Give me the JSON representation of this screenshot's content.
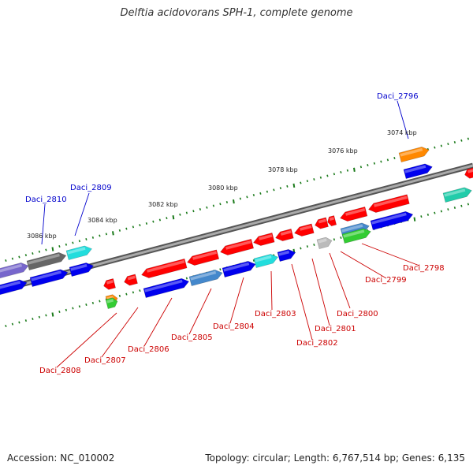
{
  "title": "Delftia acidovorans SPH-1, complete genome",
  "footer": {
    "accession": "Accession: NC_010002",
    "topology": "Topology: circular; Length: 6,767,514 bp; Genes: 6,135"
  },
  "kbp_ticks": [
    "3074 kbp",
    "3076 kbp",
    "3078 kbp",
    "3080 kbp",
    "3082 kbp",
    "3084 kbp",
    "3086 kbp"
  ],
  "gene_labels": {
    "top": [
      "Daci_2796",
      "Daci_2809",
      "Daci_2810"
    ],
    "bottom": [
      "Daci_2798",
      "Daci_2799",
      "Daci_2800",
      "Daci_2801",
      "Daci_2802",
      "Daci_2803",
      "Daci_2804",
      "Daci_2805",
      "Daci_2806",
      "Daci_2807",
      "Daci_2808"
    ]
  },
  "colors": {
    "label_top": "#0000cc",
    "label_bottom": "#cc0000",
    "tick": "#1a7a1a",
    "backbone": "#888888",
    "feature_red": "#ff0000",
    "feature_blue": "#0000ee",
    "feature_cyan": "#22dddd",
    "feature_grey": "#666666",
    "feature_orange": "#ff8800",
    "feature_green": "#33cc33",
    "feature_purple": "#7766cc",
    "feature_teal": "#22ccaa",
    "feature_steel": "#4488cc"
  }
}
